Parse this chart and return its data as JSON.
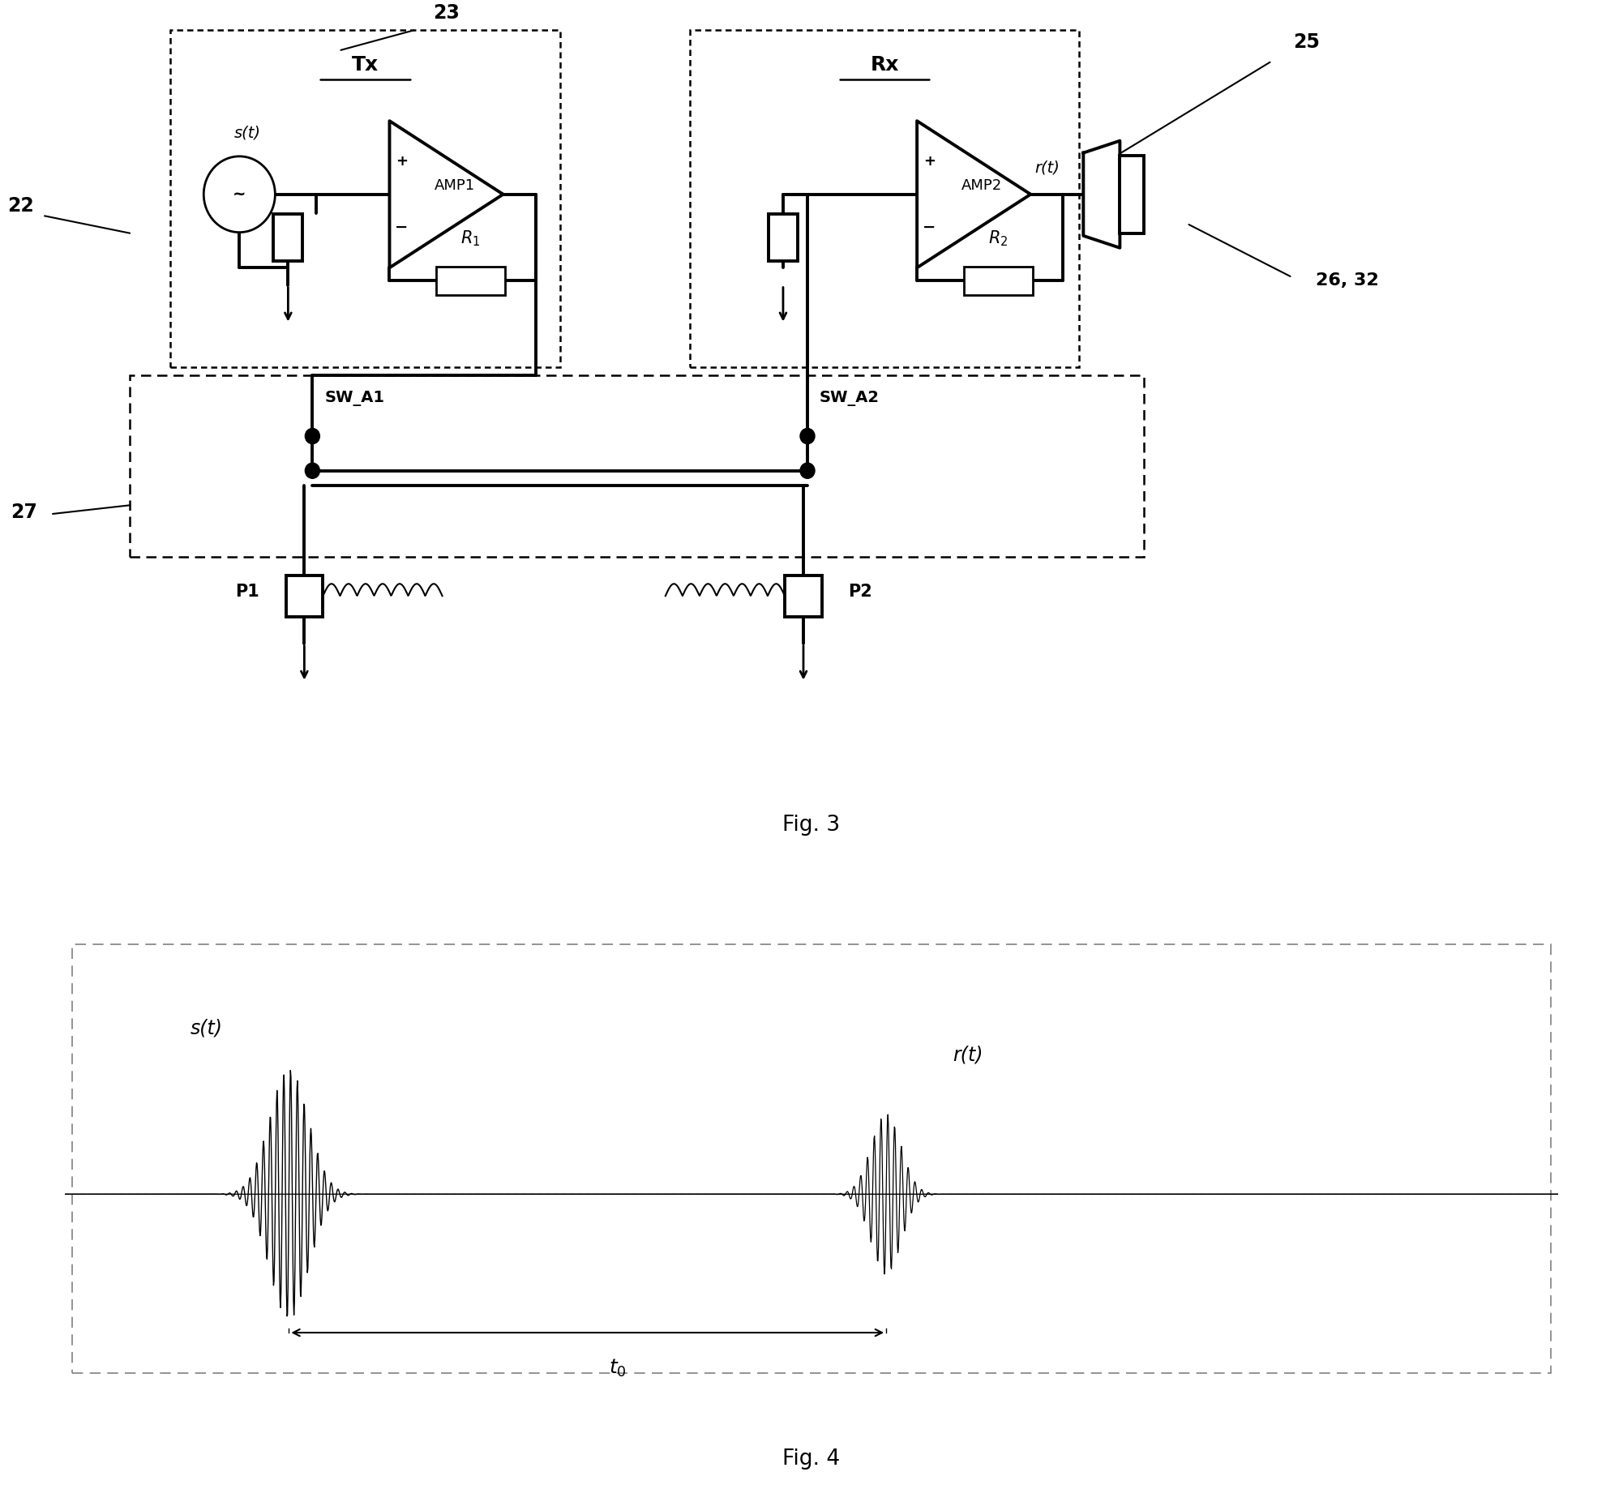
{
  "fig_width": 20.02,
  "fig_height": 18.37,
  "bg_color": "#ffffff",
  "line_color": "#000000",
  "fig3_caption": "Fig. 3",
  "fig4_caption": "Fig. 4",
  "lw": 2.0,
  "lw_thick": 2.8,
  "fs": 15,
  "labels": {
    "num22": "22",
    "num23": "23",
    "num25": "25",
    "num27": "27",
    "num2632": "26, 32",
    "tx": "Tx",
    "rx": "Rx",
    "amp1": "AMP1",
    "amp2": "AMP2",
    "r1": "$R_1$",
    "r2": "$R_2$",
    "st": "s(t)",
    "rt": "r(t)",
    "sw_a1": "SW_A1",
    "sw_a2": "SW_A2",
    "p1": "P1",
    "p2": "P2",
    "t0": "$t_0$",
    "st2": "s(t)",
    "rt2": "r(t)"
  }
}
